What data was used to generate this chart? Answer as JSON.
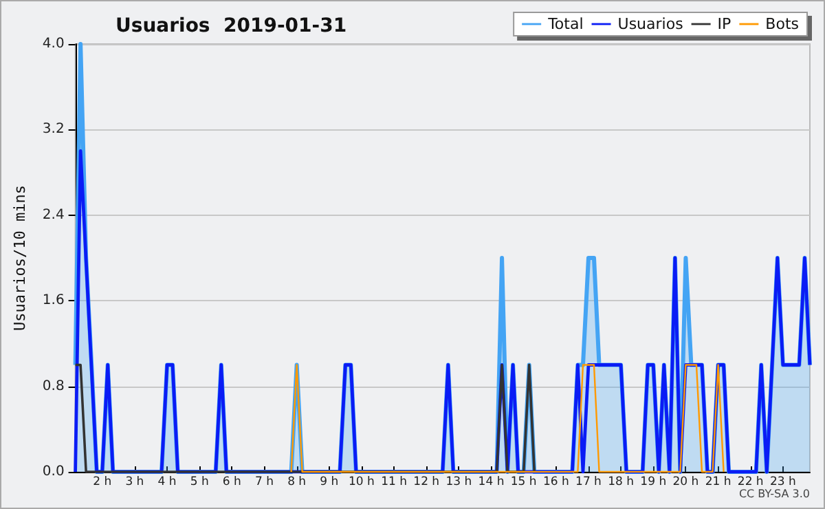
{
  "chart_data": {
    "type": "line",
    "title": "Usuarios  2019-01-31",
    "ylabel": "Usuarios/10 mins",
    "xlim": [
      1.17,
      23.83
    ],
    "xticks": [
      {
        "value": 2,
        "label": "2 h"
      },
      {
        "value": 3,
        "label": "3 h"
      },
      {
        "value": 4,
        "label": "4 h"
      },
      {
        "value": 5,
        "label": "5 h"
      },
      {
        "value": 6,
        "label": "6 h"
      },
      {
        "value": 7,
        "label": "7 h"
      },
      {
        "value": 8,
        "label": "8 h"
      },
      {
        "value": 9,
        "label": "9 h"
      },
      {
        "value": 10,
        "label": "10 h"
      },
      {
        "value": 11,
        "label": "11 h"
      },
      {
        "value": 12,
        "label": "12 h"
      },
      {
        "value": 13,
        "label": "13 h"
      },
      {
        "value": 14,
        "label": "14 h"
      },
      {
        "value": 15,
        "label": "15 h"
      },
      {
        "value": 16,
        "label": "16 h"
      },
      {
        "value": 17,
        "label": "17 h"
      },
      {
        "value": 18,
        "label": "18 h"
      },
      {
        "value": 19,
        "label": "19 h"
      },
      {
        "value": 20,
        "label": "20 h"
      },
      {
        "value": 21,
        "label": "21 h"
      },
      {
        "value": 22,
        "label": "22 h"
      },
      {
        "value": 23,
        "label": "23 h"
      }
    ],
    "ylim": [
      0,
      4
    ],
    "yticks": [
      {
        "value": 0,
        "label": "0.0"
      },
      0.8,
      1.6,
      2.4,
      3.2,
      {
        "value": 4,
        "label": "4.0"
      }
    ],
    "grid": "y",
    "legend": "top right",
    "annotations": [
      "CC BY-SA 3.0"
    ],
    "series": [
      {
        "name": "Total",
        "type": "area",
        "color": "#44a4f4",
        "x": [
          1.17,
          1.33,
          1.5,
          1.67,
          1.83,
          2,
          2.17,
          2.33,
          3.83,
          4,
          4.17,
          4.33,
          5.5,
          5.67,
          5.83,
          7.83,
          8,
          8.17,
          9.33,
          9.5,
          9.67,
          9.83,
          12.5,
          12.67,
          12.83,
          14.17,
          14.33,
          14.5,
          14.67,
          14.83,
          15,
          15.17,
          15.33,
          16.5,
          16.67,
          16.83,
          17,
          17.17,
          17.33,
          18,
          18.17,
          18.67,
          18.83,
          19,
          19.17,
          19.33,
          19.5,
          19.67,
          19.83,
          20,
          20.17,
          20.5,
          20.67,
          20.83,
          21,
          21.17,
          21.33,
          22.17,
          22.33,
          22.5,
          22.83,
          23,
          23.5,
          23.67,
          23.83
        ],
        "values": [
          1,
          4,
          2,
          1,
          0,
          0,
          1,
          0,
          0,
          1,
          1,
          0,
          0,
          1,
          0,
          0,
          1,
          0,
          0,
          1,
          1,
          0,
          0,
          1,
          0,
          0,
          2,
          0,
          1,
          0,
          0,
          1,
          0,
          0,
          1,
          1,
          2,
          2,
          1,
          1,
          0,
          0,
          1,
          1,
          0,
          1,
          0,
          2,
          0,
          2,
          1,
          1,
          0,
          0,
          1,
          1,
          0,
          0,
          1,
          0,
          2,
          1,
          1,
          2,
          1
        ]
      },
      {
        "name": "Usuarios",
        "color": "#0a1cf5",
        "x": [
          1.17,
          1.33,
          1.83,
          2,
          2.17,
          2.33,
          3.83,
          4,
          4.17,
          4.33,
          5.5,
          5.67,
          5.83,
          9.33,
          9.5,
          9.67,
          9.83,
          12.5,
          12.67,
          12.83,
          14.17,
          14.33,
          14.5,
          14.67,
          14.83,
          16.5,
          16.67,
          16.83,
          17,
          18,
          18.17,
          18.67,
          18.83,
          19,
          19.17,
          19.33,
          19.5,
          19.67,
          19.83,
          20,
          20.5,
          20.67,
          20.83,
          21,
          21.17,
          21.33,
          22.17,
          22.33,
          22.5,
          22.83,
          23,
          23.5,
          23.67,
          23.83
        ],
        "values": [
          0,
          3,
          0,
          0,
          1,
          0,
          0,
          1,
          1,
          0,
          0,
          1,
          0,
          0,
          1,
          1,
          0,
          0,
          1,
          0,
          0,
          1,
          0,
          1,
          0,
          0,
          1,
          0,
          1,
          1,
          0,
          0,
          1,
          1,
          0,
          1,
          0,
          2,
          0,
          1,
          1,
          0,
          0,
          1,
          1,
          0,
          0,
          1,
          0,
          2,
          1,
          1,
          2,
          1
        ]
      },
      {
        "name": "IP",
        "color": "#333333",
        "x": [
          1.17,
          1.33,
          1.5,
          14.17,
          14.33,
          14.5,
          15,
          15.17,
          15.33
        ],
        "values": [
          1,
          1,
          0,
          0,
          1,
          0,
          0,
          1,
          0
        ]
      },
      {
        "name": "Bots",
        "color": "#ff9900",
        "x": [
          7.83,
          8,
          8.17,
          16.67,
          16.83,
          17.17,
          17.33,
          19.83,
          20,
          20.33,
          20.5,
          20.83,
          21,
          21.17
        ],
        "values": [
          0,
          1,
          0,
          0,
          1,
          1,
          0,
          0,
          1,
          1,
          0,
          0,
          1,
          0
        ]
      }
    ]
  }
}
